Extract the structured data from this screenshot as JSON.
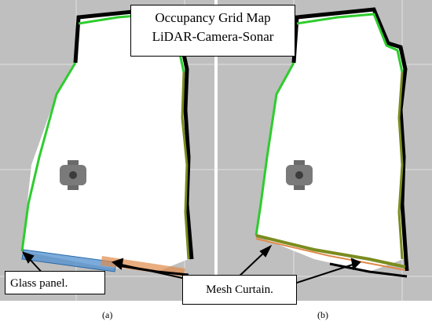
{
  "title": {
    "line1": "Occupancy Grid Map",
    "line2": "LiDAR-Camera-Sonar"
  },
  "annotations": {
    "glass": "Glass panel.",
    "mesh": "Mesh Curtain."
  },
  "panels": {
    "a": "(a)",
    "b": "(b)"
  },
  "colors": {
    "grid_background": "#bfbfbf",
    "grid_lines": "#e0e0e0",
    "free_space": "#ffffff",
    "occupied": "#000000",
    "lidar_trace": "#2ecc2e",
    "olive_trace": "#7a8c1e",
    "glass_highlight": "#4f8fcf",
    "mesh_highlight": "#e08a4a",
    "robot": "#7a7a7a"
  }
}
